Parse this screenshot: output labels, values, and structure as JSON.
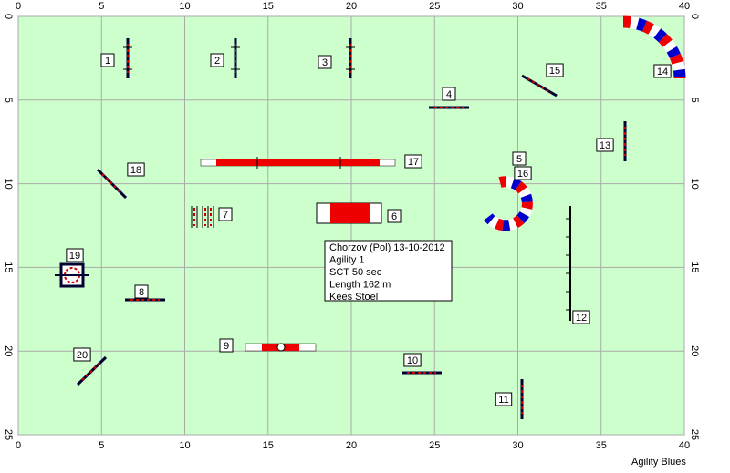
{
  "axis": {
    "xticks": [
      0,
      5,
      10,
      15,
      20,
      25,
      30,
      35,
      40
    ],
    "yticks": [
      0,
      5,
      10,
      15,
      20,
      25
    ]
  },
  "obstacles": [
    "1",
    "2",
    "3",
    "4",
    "5",
    "6",
    "7",
    "8",
    "9",
    "10",
    "11",
    "12",
    "13",
    "14",
    "15",
    "16",
    "17",
    "18",
    "19",
    "20"
  ],
  "info": [
    "Chorzov (Pol) 13-10-2012",
    "Agility 1",
    "SCT 50 sec",
    "Length 162 m",
    "Kees Stoel"
  ],
  "footer": "Agility Blues"
}
